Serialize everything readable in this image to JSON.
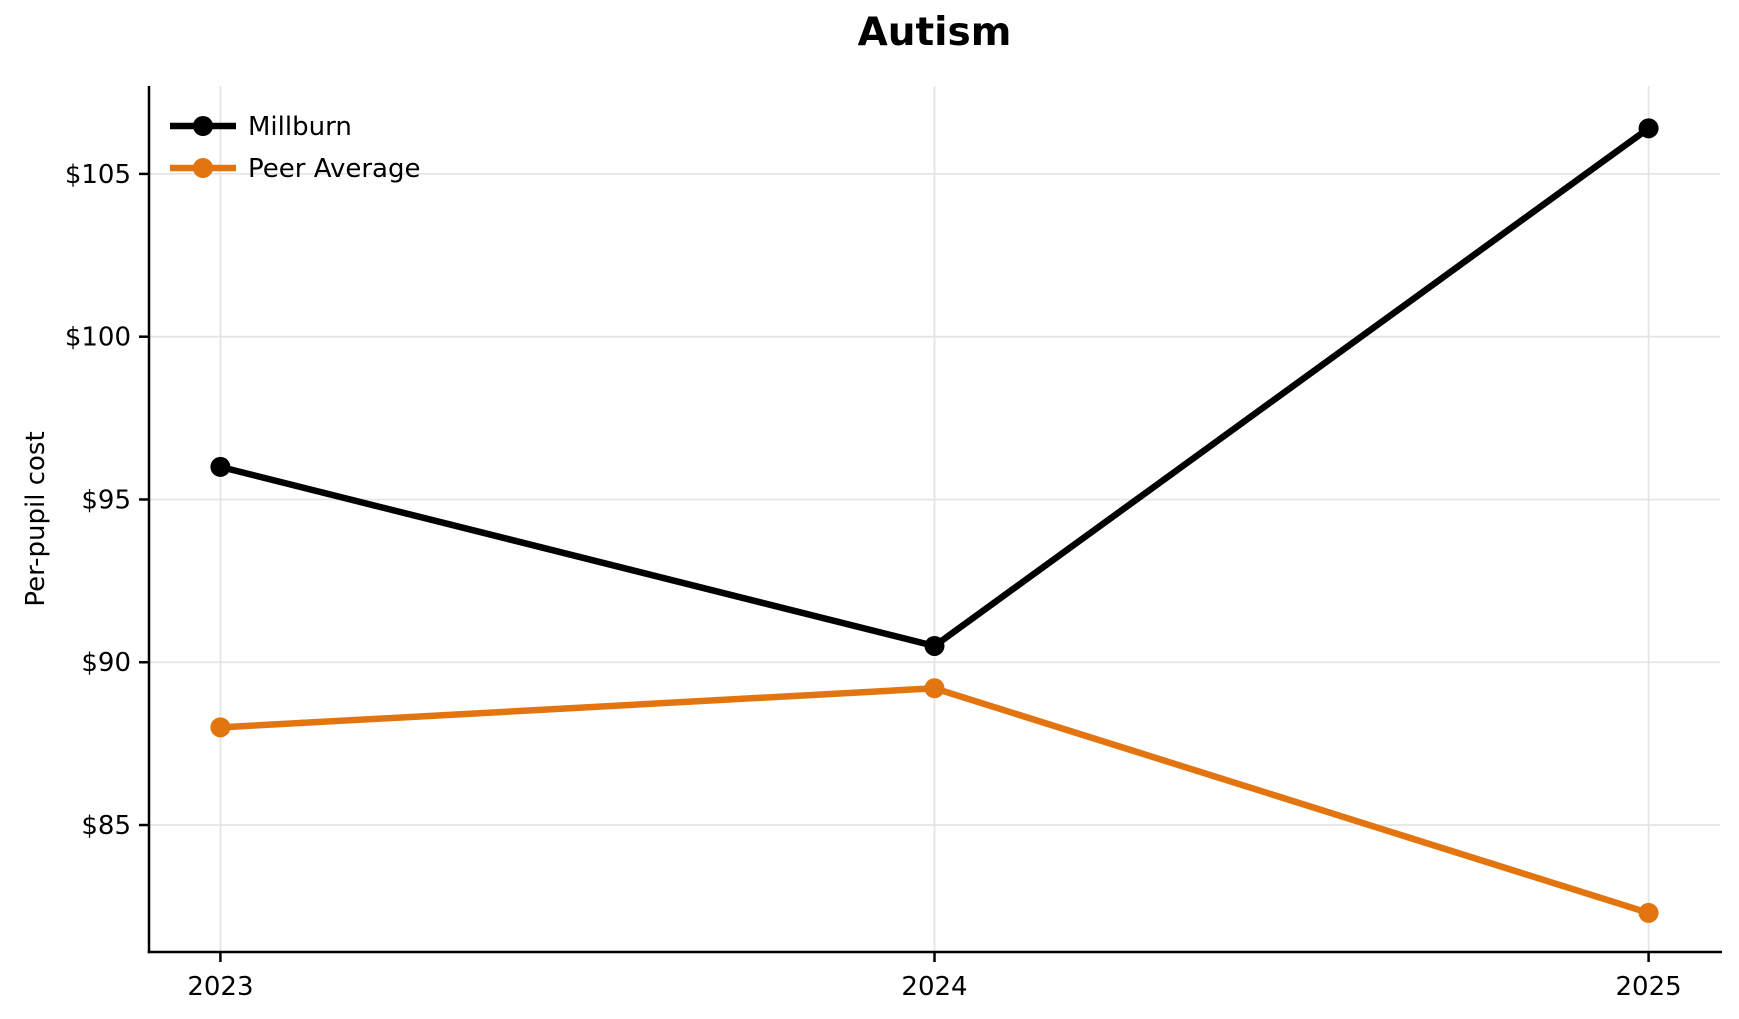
{
  "chart_data": {
    "type": "line",
    "title": "Autism",
    "ylabel": "Per-pupil cost",
    "xlabel": "",
    "x": [
      2023,
      2024,
      2025
    ],
    "x_tick_labels": [
      "2023",
      "2024",
      "2025"
    ],
    "y_ticks": [
      85,
      90,
      95,
      100,
      105
    ],
    "y_tick_labels": [
      "$85",
      "$90",
      "$95",
      "$100",
      "$105"
    ],
    "xlim": [
      2022.9,
      2025.1
    ],
    "ylim": [
      81.1,
      107.7
    ],
    "grid": true,
    "legend_position": "upper left",
    "series": [
      {
        "name": "Millburn",
        "color": "#000000",
        "values": [
          96.0,
          90.5,
          106.4
        ]
      },
      {
        "name": "Peer Average",
        "color": "#e2750f",
        "values": [
          88.0,
          89.2,
          82.3
        ]
      }
    ],
    "colors": {
      "grid": "#e5e5e5",
      "axis": "#000000",
      "text": "#000000",
      "background": "#ffffff"
    }
  }
}
